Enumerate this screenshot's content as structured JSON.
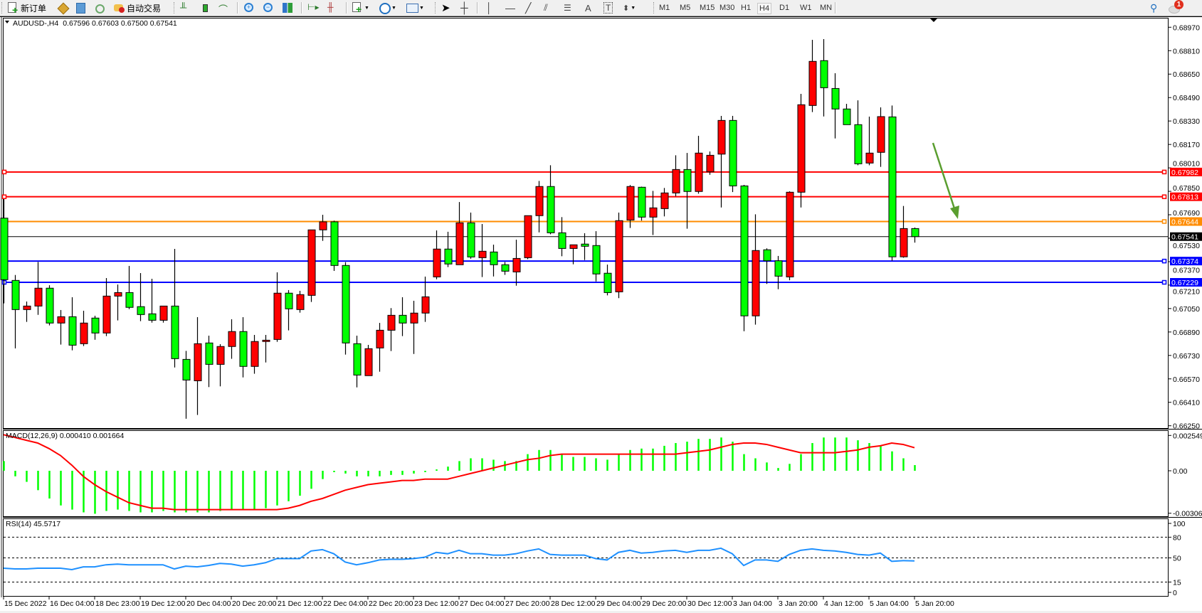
{
  "toolbar": {
    "new_order": "新订单",
    "auto_trading": "自动交易",
    "timeframes": [
      "M1",
      "M5",
      "M15",
      "M30",
      "H1",
      "H4",
      "D1",
      "W1",
      "MN"
    ],
    "active_timeframe": "H4",
    "notification_count": "1"
  },
  "chart": {
    "symbol": "AUDUSD-,H4",
    "ohlc_text": "0.67596 0.67603 0.67500 0.67541",
    "colors": {
      "bull": "#ff0000",
      "bear": "#00ff00",
      "macd_hist": "#00ff00",
      "macd_signal": "#ff0000",
      "rsi": "#1e90ff",
      "arrow": "#5a9e2f"
    },
    "price_ticks": [
      "0.68970",
      "0.68810",
      "0.68650",
      "0.68490",
      "0.68330",
      "0.68170",
      "0.68010",
      "0.67850",
      "0.67690",
      "0.67530",
      "0.67370",
      "0.67210",
      "0.67050",
      "0.66890",
      "0.66730",
      "0.66570",
      "0.66410",
      "0.66250"
    ],
    "levels": [
      {
        "price": "0.67982",
        "color": "#ff0000"
      },
      {
        "price": "0.67813",
        "color": "#ff0000"
      },
      {
        "price": "0.67644",
        "color": "#ff8c00"
      },
      {
        "price": "0.67374",
        "color": "#0000ff"
      },
      {
        "price": "0.67229",
        "color": "#0000ff"
      }
    ],
    "bid": {
      "price": "0.67541",
      "color": "#000000"
    },
    "time_labels": [
      "15 Dec 2022",
      "16 Dec 04:00",
      "18 Dec 23:00",
      "19 Dec 12:00",
      "20 Dec 04:00",
      "20 Dec 20:00",
      "21 Dec 12:00",
      "22 Dec 04:00",
      "22 Dec 20:00",
      "23 Dec 12:00",
      "27 Dec 04:00",
      "27 Dec 20:00",
      "28 Dec 12:00",
      "29 Dec 04:00",
      "29 Dec 20:00",
      "30 Dec 12:00",
      "3 Jan 04:00",
      "3 Jan 20:00",
      "4 Jan 12:00",
      "5 Jan 04:00",
      "5 Jan 20:00"
    ],
    "candles": [
      [
        0.67667,
        0.67797,
        0.67085,
        0.67247
      ],
      [
        0.67242,
        0.67279,
        0.66778,
        0.67043
      ],
      [
        0.67043,
        0.67098,
        0.66959,
        0.67067
      ],
      [
        0.67067,
        0.67368,
        0.67007,
        0.67189
      ],
      [
        0.67189,
        0.67209,
        0.66935,
        0.66951
      ],
      [
        0.66951,
        0.6704,
        0.66804,
        0.66994
      ],
      [
        0.66994,
        0.67127,
        0.66765,
        0.668
      ],
      [
        0.6681,
        0.67035,
        0.66794,
        0.66951
      ],
      [
        0.66985,
        0.67001,
        0.66837,
        0.66883
      ],
      [
        0.66883,
        0.67258,
        0.66862,
        0.67135
      ],
      [
        0.67135,
        0.67214,
        0.66969,
        0.67159
      ],
      [
        0.67159,
        0.67341,
        0.67046,
        0.67058
      ],
      [
        0.67063,
        0.67292,
        0.66964,
        0.67009
      ],
      [
        0.67014,
        0.67253,
        0.66954,
        0.6697
      ],
      [
        0.6697,
        0.67067,
        0.66954,
        0.67067
      ],
      [
        0.67067,
        0.67457,
        0.66648,
        0.66708
      ],
      [
        0.66703,
        0.66761,
        0.66298,
        0.66562
      ],
      [
        0.66557,
        0.66991,
        0.66324,
        0.6681
      ],
      [
        0.66815,
        0.66865,
        0.66514,
        0.66669
      ],
      [
        0.66669,
        0.66807,
        0.66519,
        0.66791
      ],
      [
        0.66791,
        0.66977,
        0.66707,
        0.66893
      ],
      [
        0.66893,
        0.66991,
        0.6658,
        0.66655
      ],
      [
        0.66655,
        0.6687,
        0.66605,
        0.66825
      ],
      [
        0.66825,
        0.6687,
        0.66682,
        0.66834
      ],
      [
        0.66839,
        0.67297,
        0.66823,
        0.67155
      ],
      [
        0.67155,
        0.67176,
        0.66901,
        0.67048
      ],
      [
        0.67043,
        0.67171,
        0.67022,
        0.67145
      ],
      [
        0.6714,
        0.67587,
        0.67095,
        0.67587
      ],
      [
        0.67587,
        0.6769,
        0.67512,
        0.67642
      ],
      [
        0.67642,
        0.6765,
        0.67307,
        0.67344
      ],
      [
        0.67344,
        0.67367,
        0.66736,
        0.66815
      ],
      [
        0.6681,
        0.66865,
        0.66512,
        0.66596
      ],
      [
        0.66592,
        0.66802,
        0.66592,
        0.66776
      ],
      [
        0.66781,
        0.66952,
        0.66619,
        0.66902
      ],
      [
        0.66902,
        0.67053,
        0.6676,
        0.67004
      ],
      [
        0.67004,
        0.67127,
        0.66862,
        0.66951
      ],
      [
        0.66951,
        0.67103,
        0.6674,
        0.67019
      ],
      [
        0.67019,
        0.67268,
        0.66959,
        0.6713
      ],
      [
        0.67266,
        0.67583,
        0.6725,
        0.67456
      ],
      [
        0.67456,
        0.67574,
        0.67333,
        0.67354
      ],
      [
        0.67349,
        0.67777,
        0.67349,
        0.67635
      ],
      [
        0.67635,
        0.67705,
        0.6739,
        0.67402
      ],
      [
        0.67397,
        0.67627,
        0.67265,
        0.67441
      ],
      [
        0.67436,
        0.67486,
        0.67269,
        0.67349
      ],
      [
        0.67349,
        0.67368,
        0.6728,
        0.67305
      ],
      [
        0.673,
        0.6752,
        0.67206,
        0.67392
      ],
      [
        0.67397,
        0.67684,
        0.67387,
        0.67684
      ],
      [
        0.67684,
        0.67921,
        0.6757,
        0.67883
      ],
      [
        0.67883,
        0.68028,
        0.67557,
        0.67567
      ],
      [
        0.67567,
        0.67674,
        0.67407,
        0.6746
      ],
      [
        0.6746,
        0.67485,
        0.67352,
        0.67485
      ],
      [
        0.6749,
        0.67564,
        0.67381,
        0.67475
      ],
      [
        0.6748,
        0.67578,
        0.67235,
        0.67286
      ],
      [
        0.67291,
        0.6735,
        0.6714,
        0.67159
      ],
      [
        0.67164,
        0.67705,
        0.67121,
        0.6765
      ],
      [
        0.67654,
        0.67893,
        0.676,
        0.67883
      ],
      [
        0.67878,
        0.67882,
        0.6765,
        0.67674
      ],
      [
        0.67674,
        0.67853,
        0.67552,
        0.67737
      ],
      [
        0.67732,
        0.67873,
        0.67679,
        0.67839
      ],
      [
        0.67839,
        0.68096,
        0.67816,
        0.67999
      ],
      [
        0.67999,
        0.68112,
        0.67595,
        0.67849
      ],
      [
        0.67849,
        0.68229,
        0.67834,
        0.68111
      ],
      [
        0.67983,
        0.68122,
        0.67963,
        0.68096
      ],
      [
        0.68104,
        0.68365,
        0.6774,
        0.68334
      ],
      [
        0.68334,
        0.68365,
        0.67845,
        0.67887
      ],
      [
        0.67887,
        0.67894,
        0.66895,
        0.67
      ],
      [
        0.67,
        0.67693,
        0.6694,
        0.67446
      ],
      [
        0.67451,
        0.67461,
        0.67218,
        0.67376
      ],
      [
        0.67376,
        0.67409,
        0.67182,
        0.67271
      ],
      [
        0.67266,
        0.6785,
        0.67243,
        0.67844
      ],
      [
        0.67844,
        0.68515,
        0.6774,
        0.68441
      ],
      [
        0.68436,
        0.68884,
        0.68391,
        0.68737
      ],
      [
        0.68742,
        0.68889,
        0.68361,
        0.68557
      ],
      [
        0.68552,
        0.68656,
        0.68211,
        0.68412
      ],
      [
        0.68412,
        0.68447,
        0.68305,
        0.68305
      ],
      [
        0.68305,
        0.68471,
        0.68028,
        0.68038
      ],
      [
        0.68043,
        0.6836,
        0.68028,
        0.68111
      ],
      [
        0.68116,
        0.68423,
        0.68017,
        0.6836
      ],
      [
        0.68358,
        0.68436,
        0.67376,
        0.67403
      ],
      [
        0.67403,
        0.6775,
        0.67397,
        0.67596
      ],
      [
        0.67596,
        0.67603,
        0.675,
        0.67541
      ]
    ]
  },
  "macd": {
    "label": "MACD(12,26,9) 0.000410 0.001664",
    "ticks": [
      "0.002549",
      "0.00",
      "-0.003062"
    ],
    "histogram": [
      0.0007,
      -0.0004,
      -0.0008,
      -0.0014,
      -0.002,
      -0.0025,
      -0.0028,
      -0.003,
      -0.0031,
      -0.0029,
      -0.0028,
      -0.0029,
      -0.003,
      -0.003,
      -0.0029,
      -0.003,
      -0.003,
      -0.003,
      -0.003,
      -0.0029,
      -0.0028,
      -0.0028,
      -0.0028,
      -0.0027,
      -0.0025,
      -0.0022,
      -0.0018,
      -0.0013,
      -0.0006,
      -0.0001,
      -0.0002,
      -0.0004,
      -0.0004,
      -0.0004,
      -0.0003,
      -0.0003,
      -0.0002,
      -0.0001,
      0.0001,
      0.0003,
      0.0007,
      0.0009,
      0.0009,
      0.0008,
      0.0007,
      0.0007,
      0.0012,
      0.0015,
      0.0015,
      0.0012,
      0.001,
      0.001,
      0.0009,
      0.0008,
      0.0012,
      0.0015,
      0.0016,
      0.0016,
      0.0018,
      0.002,
      0.0021,
      0.0023,
      0.0023,
      0.0024,
      0.0021,
      0.0012,
      0.0009,
      0.0006,
      0.0002,
      0.0005,
      0.0012,
      0.002,
      0.0024,
      0.0024,
      0.0024,
      0.0022,
      0.002,
      0.0018,
      0.0014,
      0.0009,
      0.00041
    ],
    "signal": [
      0.0026,
      0.0024,
      0.0022,
      0.002,
      0.0016,
      0.0011,
      0.0004,
      -0.0004,
      -0.001,
      -0.0015,
      -0.0019,
      -0.0023,
      -0.0025,
      -0.0027,
      -0.0027,
      -0.0028,
      -0.0028,
      -0.0028,
      -0.0028,
      -0.0028,
      -0.0028,
      -0.0028,
      -0.0028,
      -0.0028,
      -0.0028,
      -0.0027,
      -0.0025,
      -0.0022,
      -0.002,
      -0.0017,
      -0.0014,
      -0.0012,
      -0.001,
      -0.0009,
      -0.0008,
      -0.0007,
      -0.0007,
      -0.0006,
      -0.0006,
      -0.0006,
      -0.0004,
      -0.0002,
      0,
      0.0002,
      0.0004,
      0.0006,
      0.0008,
      0.0009,
      0.0011,
      0.0012,
      0.0012,
      0.0012,
      0.0012,
      0.0012,
      0.0012,
      0.0012,
      0.0012,
      0.0012,
      0.0012,
      0.0012,
      0.0013,
      0.0014,
      0.0015,
      0.0017,
      0.0019,
      0.002,
      0.002,
      0.0019,
      0.0017,
      0.0015,
      0.0013,
      0.0013,
      0.0013,
      0.0013,
      0.0014,
      0.0015,
      0.0017,
      0.0018,
      0.002,
      0.0019,
      0.001664
    ]
  },
  "rsi": {
    "label": "RSI(14) 45.5717",
    "ticks": [
      "100",
      "80",
      "50",
      "15",
      "0"
    ],
    "levels": [
      80,
      50,
      15
    ],
    "values": [
      35,
      34,
      34,
      35,
      35,
      35,
      33,
      37,
      37,
      40,
      41,
      40,
      40,
      40,
      40,
      34,
      38,
      37,
      39,
      42,
      41,
      38,
      40,
      43,
      49,
      49,
      49,
      60,
      62,
      56,
      44,
      40,
      43,
      47,
      48,
      48,
      49,
      51,
      58,
      56,
      61,
      56,
      56,
      54,
      54,
      56,
      60,
      63,
      55,
      54,
      54,
      54,
      49,
      47,
      58,
      61,
      57,
      58,
      60,
      61,
      58,
      61,
      61,
      64,
      56,
      39,
      47,
      47,
      45,
      55,
      61,
      63,
      61,
      60,
      58,
      55,
      54,
      57,
      45,
      46,
      45.5717
    ]
  }
}
